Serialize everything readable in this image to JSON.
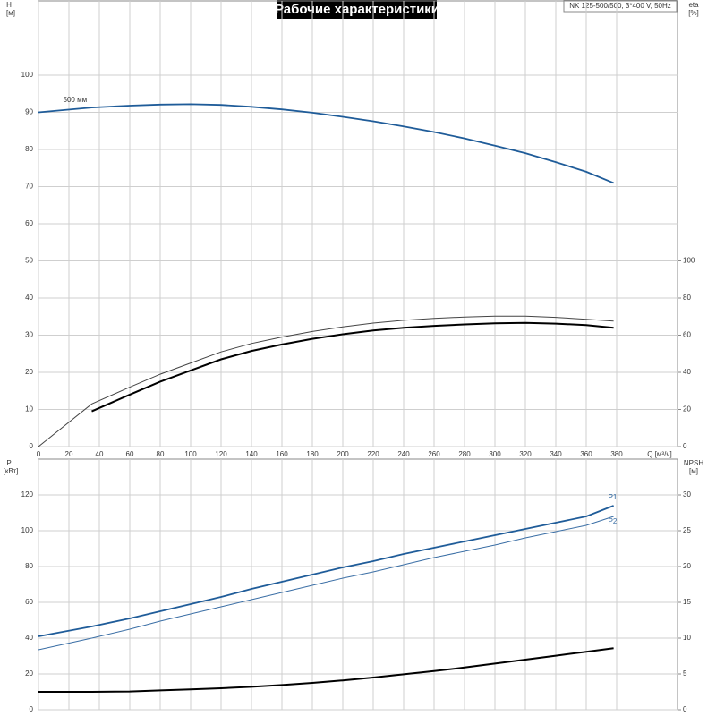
{
  "title": "Рабочие характеристики",
  "model": "NK 125-500/500, 3*400 V, 50Hz",
  "chart_data": [
    {
      "type": "line",
      "xlabel": "Q [м³/ч]",
      "ylabel": "H",
      "yunit": "[м]",
      "y2label": "eta",
      "y2unit": "[%]",
      "xlim": [
        0,
        420
      ],
      "xticks": [
        0,
        20,
        40,
        60,
        80,
        100,
        120,
        140,
        160,
        180,
        200,
        220,
        240,
        260,
        280,
        300,
        320,
        340,
        360,
        380
      ],
      "ylim": [
        0,
        120
      ],
      "yticks": [
        0,
        10,
        20,
        30,
        40,
        50,
        60,
        70,
        80,
        90,
        100
      ],
      "y2lim": [
        0,
        240
      ],
      "y2ticks": [
        0,
        20,
        40,
        60,
        80,
        100
      ],
      "grid": true,
      "x": [
        0,
        35,
        60,
        80,
        100,
        120,
        140,
        160,
        180,
        200,
        220,
        240,
        260,
        280,
        300,
        320,
        340,
        360,
        378
      ],
      "series": [
        {
          "name": "500 мм",
          "color": "#1f5c99",
          "values": [
            90,
            91.3,
            91.8,
            92.1,
            92.2,
            92,
            91.5,
            90.8,
            89.9,
            88.8,
            87.6,
            86.2,
            84.7,
            83,
            81,
            79,
            76.6,
            74,
            71
          ]
        },
        {
          "color": "#444444",
          "axis": "y2",
          "values": [
            0,
            23,
            32,
            39,
            45,
            51,
            55.5,
            59,
            62,
            64.5,
            66.5,
            68,
            69,
            69.8,
            70.2,
            70.2,
            69.6,
            68.6,
            67.6
          ]
        },
        {
          "color": "#000000",
          "axis": "y2",
          "values": [
            null,
            19,
            28,
            35,
            41,
            47,
            51.5,
            55,
            58,
            60.5,
            62.5,
            64,
            65,
            65.8,
            66.4,
            66.6,
            66.2,
            65.4,
            64
          ]
        }
      ]
    },
    {
      "type": "line",
      "ylabel": "P",
      "yunit": "[кВт]",
      "y2label": "NPSH",
      "y2unit": "[м]",
      "xlim": [
        0,
        420
      ],
      "xticks": [
        0,
        20,
        40,
        60,
        80,
        100,
        120,
        140,
        160,
        180,
        200,
        220,
        240,
        260,
        280,
        300,
        320,
        340,
        360,
        380
      ],
      "ylim": [
        0,
        140
      ],
      "yticks": [
        0,
        20,
        40,
        60,
        80,
        100,
        120
      ],
      "y2lim": [
        0,
        35
      ],
      "y2ticks": [
        0,
        5,
        10,
        15,
        20,
        25,
        30
      ],
      "grid": true,
      "x": [
        0,
        35,
        60,
        80,
        100,
        120,
        140,
        160,
        180,
        200,
        220,
        240,
        260,
        280,
        300,
        320,
        340,
        360,
        378
      ],
      "series": [
        {
          "name": "P1",
          "color": "#1f5c99",
          "values": [
            41,
            46.5,
            51,
            55,
            59,
            63,
            67.5,
            71.5,
            75.5,
            79.5,
            83,
            87,
            90.5,
            94,
            97.5,
            101,
            104.5,
            108,
            114
          ]
        },
        {
          "name": "P2",
          "color": "#3a6ea5",
          "values": [
            33.5,
            40,
            45,
            49.5,
            53.5,
            57.5,
            61.5,
            65.5,
            69.5,
            73.5,
            77,
            81,
            85,
            88.5,
            92,
            96,
            99.5,
            103,
            108
          ]
        },
        {
          "color": "#000000",
          "axis": "y2",
          "values": [
            2.5,
            2.5,
            2.55,
            2.7,
            2.85,
            3,
            3.2,
            3.45,
            3.75,
            4.1,
            4.5,
            4.95,
            5.4,
            5.9,
            6.45,
            7,
            7.55,
            8.1,
            8.6
          ]
        }
      ]
    }
  ]
}
